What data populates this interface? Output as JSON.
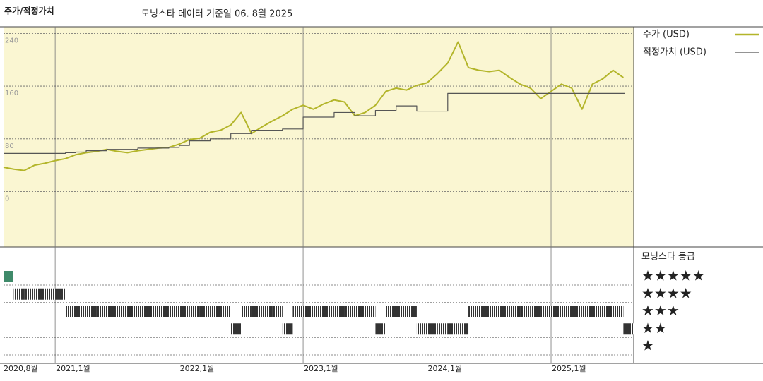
{
  "chart_data": {
    "type": "line",
    "title": "주가/적정가치",
    "subtitle": "모닝스타 데이터 기준일 06. 8월 2025",
    "x": [
      "2020-08",
      "2020-09",
      "2020-10",
      "2020-11",
      "2020-12",
      "2021-01",
      "2021-02",
      "2021-03",
      "2021-04",
      "2021-05",
      "2021-06",
      "2021-07",
      "2021-08",
      "2021-09",
      "2021-10",
      "2021-11",
      "2021-12",
      "2022-01",
      "2022-02",
      "2022-03",
      "2022-04",
      "2022-05",
      "2022-06",
      "2022-07",
      "2022-08",
      "2022-09",
      "2022-10",
      "2022-11",
      "2022-12",
      "2023-01",
      "2023-02",
      "2023-03",
      "2023-04",
      "2023-05",
      "2023-06",
      "2023-07",
      "2023-08",
      "2023-09",
      "2023-10",
      "2023-11",
      "2023-12",
      "2024-01",
      "2024-02",
      "2024-03",
      "2024-04",
      "2024-05",
      "2024-06",
      "2024-07",
      "2024-08",
      "2024-09",
      "2024-10",
      "2024-11",
      "2024-12",
      "2025-01",
      "2025-02",
      "2025-03",
      "2025-04",
      "2025-05",
      "2025-06",
      "2025-07",
      "2025-08"
    ],
    "series": [
      {
        "name": "주가 (USD)",
        "color": "#b3b52a",
        "values": [
          37,
          34,
          32,
          40,
          43,
          47,
          50,
          56,
          59,
          61,
          64,
          61,
          59,
          62,
          64,
          66,
          67,
          72,
          79,
          81,
          90,
          93,
          101,
          120,
          88,
          98,
          107,
          115,
          125,
          131,
          125,
          133,
          139,
          136,
          115,
          120,
          131,
          152,
          157,
          154,
          161,
          165,
          179,
          195,
          227,
          188,
          184,
          182,
          184,
          173,
          163,
          157,
          141,
          152,
          163,
          157,
          125,
          163,
          171,
          184,
          173
        ]
      },
      {
        "name": "적정가치 (USD)",
        "color": "#555555",
        "step": true,
        "values": [
          58,
          58,
          58,
          58,
          58,
          58,
          59,
          60,
          62,
          62,
          64,
          64,
          64,
          66,
          66,
          66,
          67,
          70,
          77,
          77,
          80,
          80,
          88,
          88,
          93,
          93,
          93,
          95,
          95,
          113,
          113,
          113,
          120,
          120,
          115,
          115,
          123,
          123,
          130,
          130,
          122,
          122,
          122,
          149,
          149,
          149,
          149,
          149,
          149,
          149,
          149,
          149,
          149,
          149,
          149,
          149,
          149,
          149,
          149,
          149,
          149
        ]
      }
    ],
    "xlim": [
      "2020-08",
      "2025-09"
    ],
    "xticks": [
      {
        "value": "2020-08",
        "label": "2020,8월"
      },
      {
        "value": "2021-01",
        "label": "2021,1월"
      },
      {
        "value": "2022-01",
        "label": "2022,1월"
      },
      {
        "value": "2023-01",
        "label": "2023,1월"
      },
      {
        "value": "2024-01",
        "label": "2024,1월"
      },
      {
        "value": "2025-01",
        "label": "2025,1월"
      }
    ],
    "ylim": [
      -84,
      250
    ],
    "yticks": [
      0,
      80,
      160,
      240
    ],
    "grid": true,
    "background": "#faf6d2",
    "rating": {
      "title": "모닝스타 등급",
      "color": "#333333",
      "top_color": "#3f8a6a",
      "levels": [
        {
          "value": 5,
          "label": "★★★★★"
        },
        {
          "value": 4,
          "label": "★★★★"
        },
        {
          "value": 3,
          "label": "★★★"
        },
        {
          "value": 2,
          "label": "★★"
        },
        {
          "value": 1,
          "label": "★"
        }
      ],
      "values": [
        5,
        4,
        4,
        4,
        4,
        4,
        3,
        3,
        3,
        3,
        3,
        3,
        3,
        3,
        3,
        3,
        3,
        3,
        3,
        3,
        3,
        3,
        2,
        3,
        3,
        3,
        3,
        2,
        3,
        3,
        3,
        3,
        3,
        3,
        3,
        3,
        2,
        3,
        3,
        3,
        2,
        2,
        2,
        2,
        2,
        3,
        3,
        3,
        3,
        3,
        3,
        3,
        3,
        3,
        3,
        3,
        3,
        3,
        3,
        3,
        2
      ]
    }
  }
}
